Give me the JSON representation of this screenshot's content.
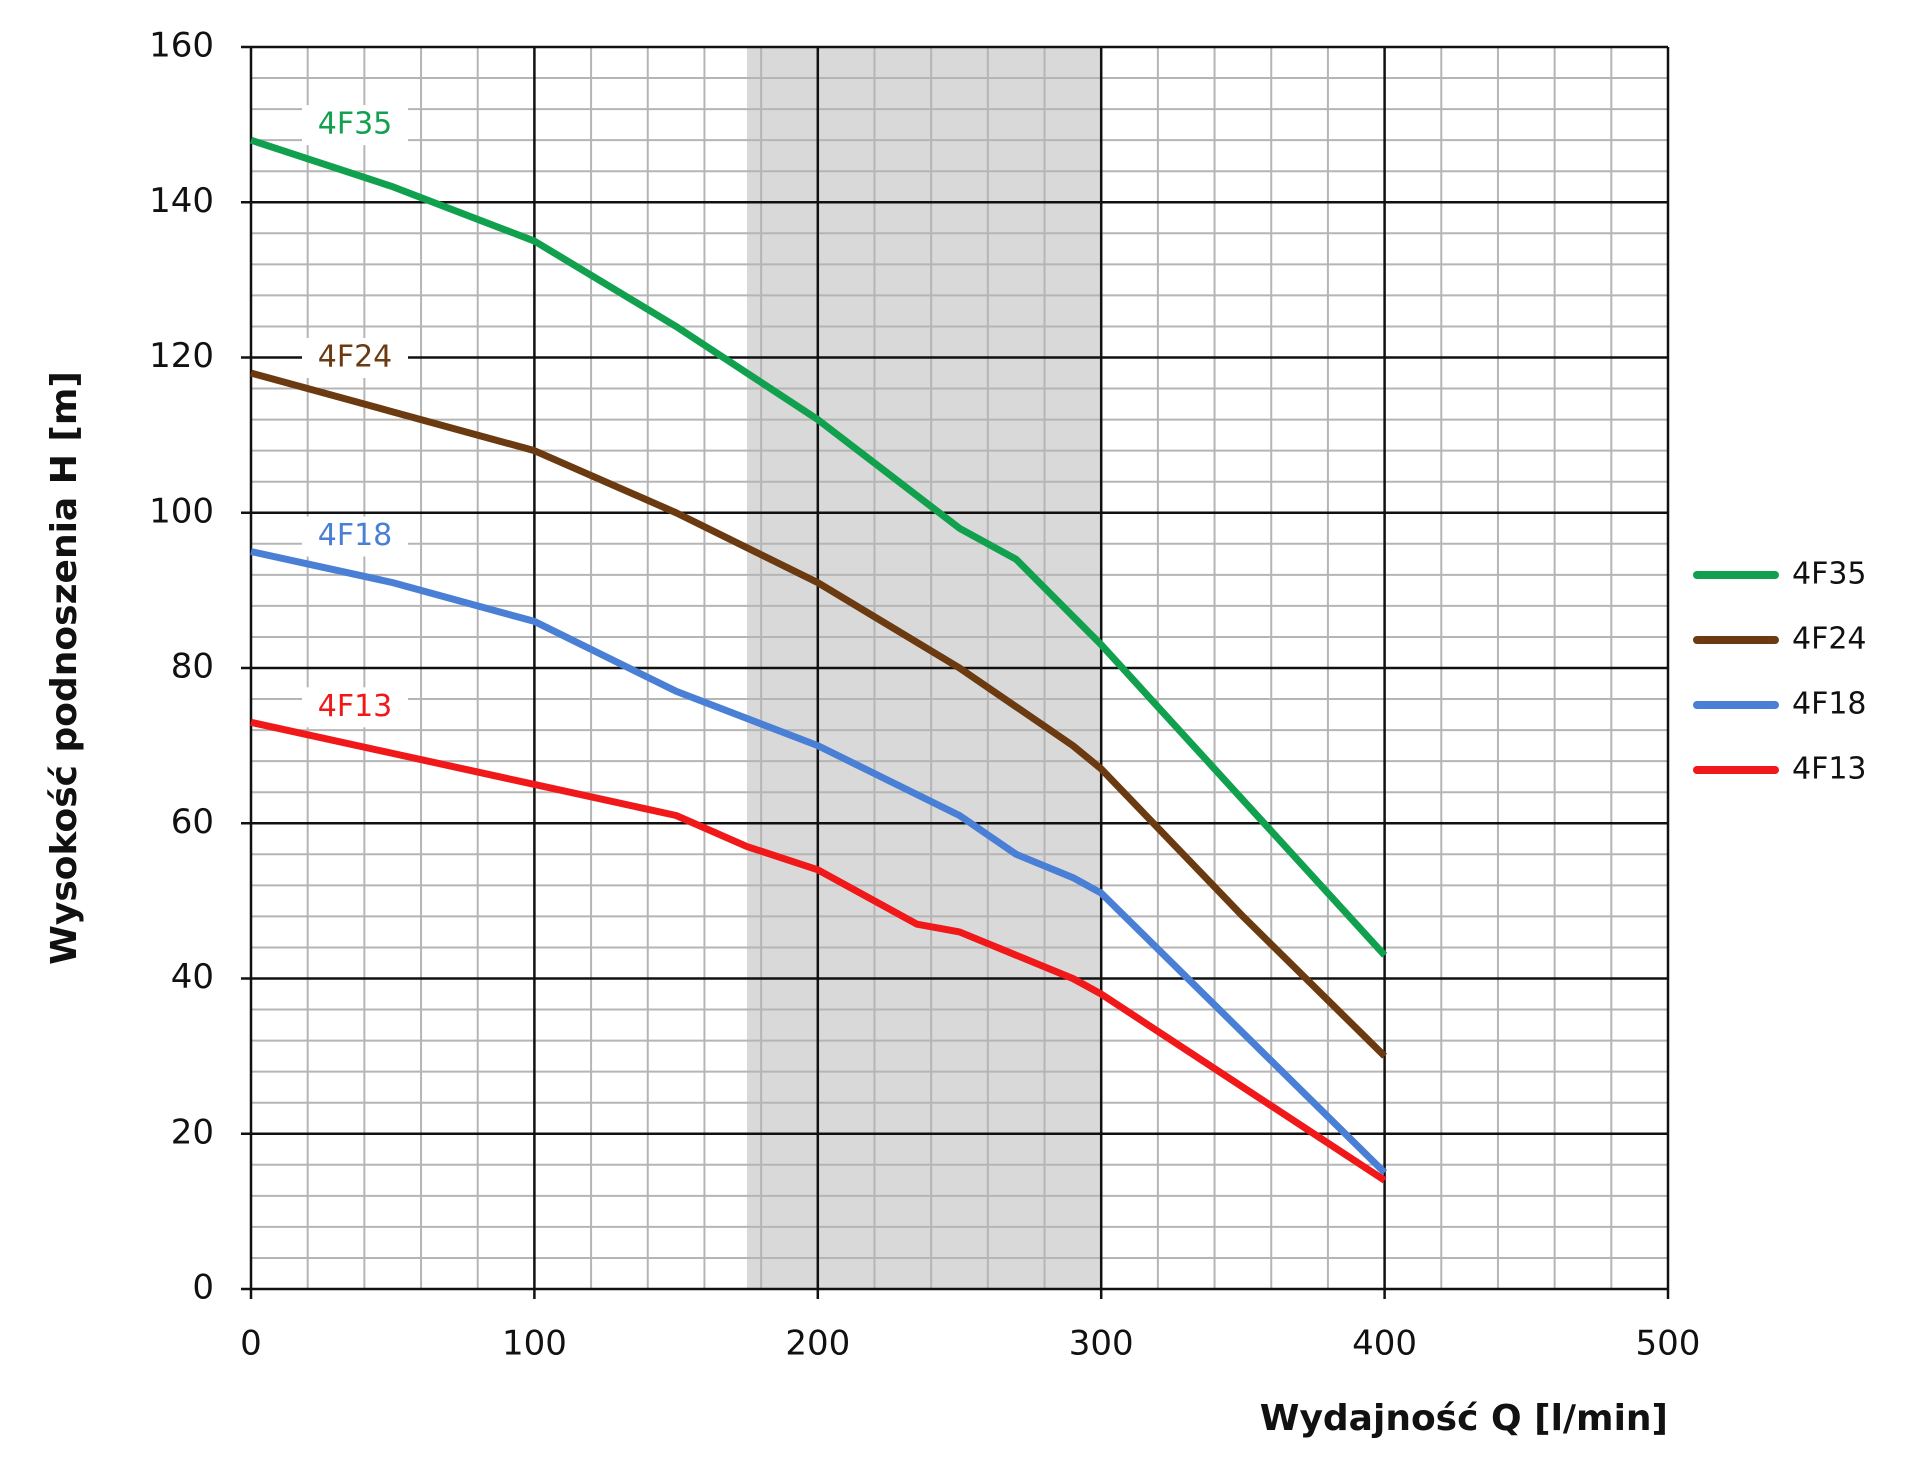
{
  "chart_data": {
    "type": "line",
    "xlabel": "Wydajność Q [l/min]",
    "ylabel": "Wysokość podnoszenia H [m]",
    "xlim": [
      0,
      500
    ],
    "ylim": [
      0,
      160
    ],
    "xticks": [
      0,
      100,
      200,
      300,
      400,
      500
    ],
    "yticks": [
      0,
      20,
      40,
      60,
      80,
      100,
      120,
      140,
      160
    ],
    "grid": true,
    "minor_divisions": 5,
    "legend": "right",
    "shaded_range": [
      175,
      300
    ],
    "series": [
      {
        "name": "4F35",
        "color": "#11a14e",
        "x": [
          0,
          50,
          100,
          150,
          200,
          250,
          270,
          300,
          350,
          400
        ],
        "values": [
          148,
          142,
          135,
          124,
          112,
          98,
          94,
          83,
          63,
          43
        ]
      },
      {
        "name": "4F24",
        "color": "#6b3a10",
        "x": [
          0,
          50,
          100,
          150,
          200,
          250,
          270,
          290,
          300,
          350,
          400
        ],
        "values": [
          118,
          113,
          108,
          100,
          91,
          80,
          75,
          70,
          67,
          48,
          30
        ]
      },
      {
        "name": "4F18",
        "color": "#4a7fd6",
        "x": [
          0,
          50,
          100,
          150,
          200,
          250,
          270,
          290,
          300,
          350,
          400
        ],
        "values": [
          95,
          91,
          86,
          77,
          70,
          61,
          56,
          53,
          51,
          33,
          15
        ]
      },
      {
        "name": "4F13",
        "color": "#f01818",
        "x": [
          0,
          50,
          100,
          150,
          175,
          200,
          235,
          250,
          270,
          290,
          300,
          350,
          400
        ],
        "values": [
          73,
          69,
          65,
          61,
          57,
          54,
          47,
          46,
          43,
          40,
          38,
          26,
          14
        ]
      }
    ]
  }
}
